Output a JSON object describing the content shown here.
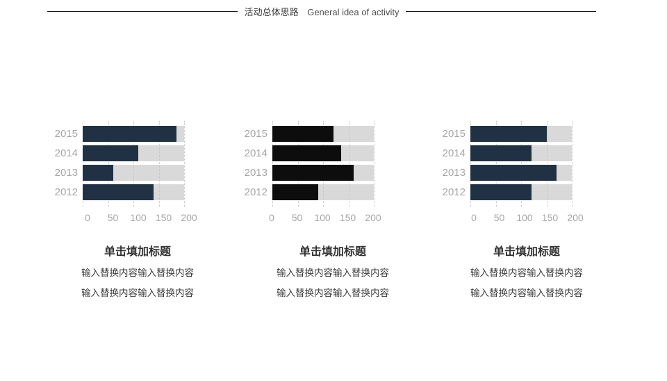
{
  "header": {
    "title_zh": "活动总体思路",
    "title_en": "General idea of activity"
  },
  "chart_data": [
    {
      "type": "bar",
      "orientation": "horizontal",
      "title": "",
      "categories": [
        "2015",
        "2014",
        "2013",
        "2012"
      ],
      "values": [
        185,
        110,
        60,
        140
      ],
      "xlim": [
        0,
        200
      ],
      "xticks": [
        0,
        50,
        100,
        150,
        200
      ],
      "grid": true,
      "legend": "none",
      "bar_color": "#203144",
      "track_color": "#d9d9d9"
    },
    {
      "type": "bar",
      "orientation": "horizontal",
      "title": "",
      "categories": [
        "2015",
        "2014",
        "2013",
        "2012"
      ],
      "values": [
        120,
        135,
        160,
        90
      ],
      "xlim": [
        0,
        200
      ],
      "xticks": [
        0,
        50,
        100,
        150,
        200
      ],
      "grid": true,
      "legend": "none",
      "bar_color": "#0d0d0d",
      "track_color": "#d9d9d9"
    },
    {
      "type": "bar",
      "orientation": "horizontal",
      "title": "",
      "categories": [
        "2015",
        "2014",
        "2013",
        "2012"
      ],
      "values": [
        150,
        120,
        170,
        120
      ],
      "xlim": [
        0,
        200
      ],
      "xticks": [
        0,
        50,
        100,
        150,
        200
      ],
      "grid": true,
      "legend": "none",
      "bar_color": "#203144",
      "track_color": "#d9d9d9"
    }
  ],
  "sections": [
    {
      "title": "单击填加标题",
      "lines": [
        "输入替换内容输入替换内容",
        "输入替换内容输入替换内容"
      ]
    },
    {
      "title": "单击填加标题",
      "lines": [
        "输入替换内容输入替换内容",
        "输入替换内容输入替换内容"
      ]
    },
    {
      "title": "单击填加标题",
      "lines": [
        "输入替换内容输入替换内容",
        "输入替换内容输入替换内容"
      ]
    }
  ],
  "colors": {
    "axis_label": "#a6a6a6",
    "gridline": "#c4c4c4",
    "header_rule": "#161616"
  }
}
